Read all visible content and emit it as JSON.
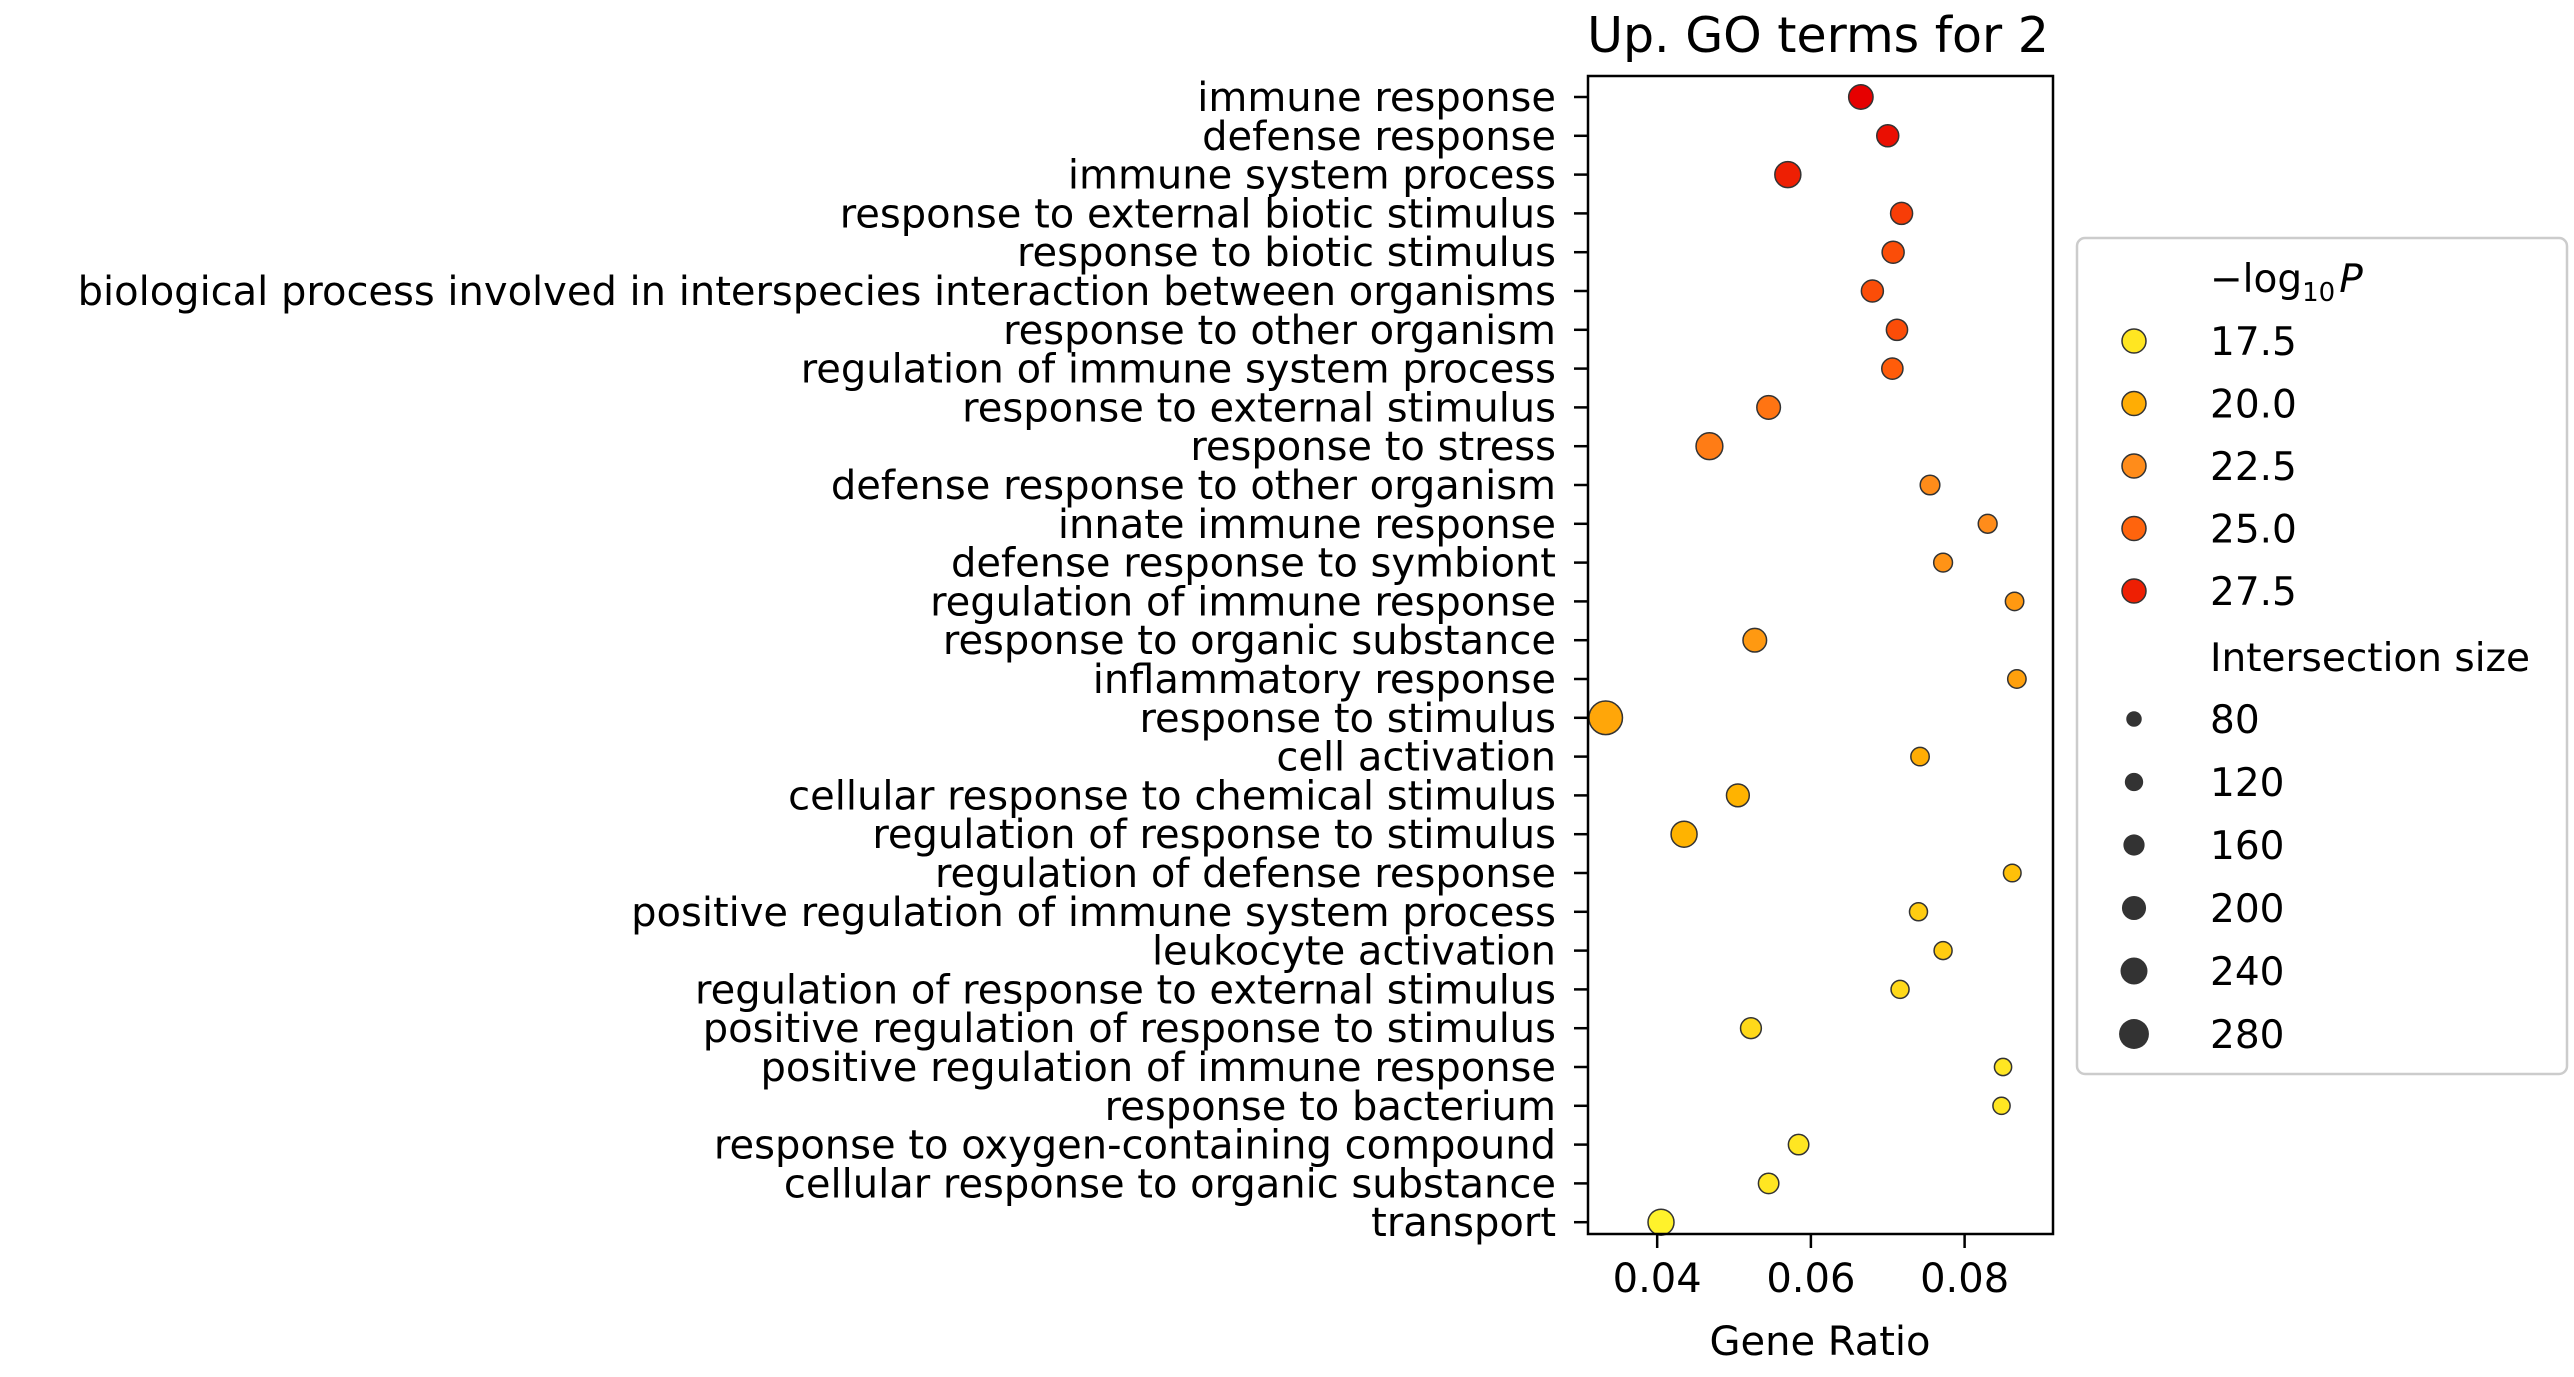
{
  "chart_data": {
    "type": "scatter",
    "title": "Up. GO terms for 2",
    "xlabel": "Gene Ratio",
    "ylabel": "",
    "xlim": [
      0.031,
      0.0915
    ],
    "xticks": [
      0.04,
      0.06,
      0.08
    ],
    "xtick_labels": [
      "0.04",
      "0.06",
      "0.08"
    ],
    "grid": false,
    "legend_position": "right, outside plot",
    "color_scale": {
      "min": 16.5,
      "max": 28.5,
      "colors": [
        "#ffff33",
        "#ffb300",
        "#ff8c1a",
        "#ff5c0a",
        "#e60000"
      ]
    },
    "size_scale": {
      "min": 40,
      "max": 290
    },
    "points": [
      {
        "term": "immune response",
        "gene_ratio": 0.0665,
        "neg_log10_p": 28.5,
        "intersection_size": 170
      },
      {
        "term": "defense response",
        "gene_ratio": 0.07,
        "neg_log10_p": 28.0,
        "intersection_size": 140
      },
      {
        "term": "immune system process",
        "gene_ratio": 0.057,
        "neg_log10_p": 27.5,
        "intersection_size": 190
      },
      {
        "term": "response to external biotic stimulus",
        "gene_ratio": 0.0718,
        "neg_log10_p": 26.5,
        "intersection_size": 140
      },
      {
        "term": "response to biotic stimulus",
        "gene_ratio": 0.0707,
        "neg_log10_p": 26.0,
        "intersection_size": 140
      },
      {
        "term": "biological process involved in interspecies interaction between organisms",
        "gene_ratio": 0.068,
        "neg_log10_p": 26.0,
        "intersection_size": 140
      },
      {
        "term": "response to other organism",
        "gene_ratio": 0.0712,
        "neg_log10_p": 26.0,
        "intersection_size": 130
      },
      {
        "term": "regulation of immune system process",
        "gene_ratio": 0.0706,
        "neg_log10_p": 25.5,
        "intersection_size": 130
      },
      {
        "term": "response to external stimulus",
        "gene_ratio": 0.0545,
        "neg_log10_p": 24.0,
        "intersection_size": 160
      },
      {
        "term": "response to stress",
        "gene_ratio": 0.0468,
        "neg_log10_p": 23.5,
        "intersection_size": 200
      },
      {
        "term": "defense response to other organism",
        "gene_ratio": 0.0755,
        "neg_log10_p": 22.5,
        "intersection_size": 110
      },
      {
        "term": "innate immune response",
        "gene_ratio": 0.083,
        "neg_log10_p": 22.5,
        "intersection_size": 100
      },
      {
        "term": "defense response to symbiont",
        "gene_ratio": 0.0772,
        "neg_log10_p": 22.0,
        "intersection_size": 100
      },
      {
        "term": "regulation of immune response",
        "gene_ratio": 0.0865,
        "neg_log10_p": 21.5,
        "intersection_size": 95
      },
      {
        "term": "response to organic substance",
        "gene_ratio": 0.0527,
        "neg_log10_p": 21.5,
        "intersection_size": 160
      },
      {
        "term": "inflammatory response",
        "gene_ratio": 0.0868,
        "neg_log10_p": 21.0,
        "intersection_size": 95
      },
      {
        "term": "response to stimulus",
        "gene_ratio": 0.0333,
        "neg_log10_p": 20.5,
        "intersection_size": 285
      },
      {
        "term": "cell activation",
        "gene_ratio": 0.0742,
        "neg_log10_p": 20.0,
        "intersection_size": 95
      },
      {
        "term": "cellular response to chemical stimulus",
        "gene_ratio": 0.0505,
        "neg_log10_p": 19.5,
        "intersection_size": 150
      },
      {
        "term": "regulation of response to stimulus",
        "gene_ratio": 0.0435,
        "neg_log10_p": 19.5,
        "intersection_size": 190
      },
      {
        "term": "regulation of defense response",
        "gene_ratio": 0.0862,
        "neg_log10_p": 19.0,
        "intersection_size": 85
      },
      {
        "term": "positive regulation of immune system process",
        "gene_ratio": 0.074,
        "neg_log10_p": 18.5,
        "intersection_size": 90
      },
      {
        "term": "leukocyte activation",
        "gene_ratio": 0.0772,
        "neg_log10_p": 18.5,
        "intersection_size": 90
      },
      {
        "term": "regulation of response to external stimulus",
        "gene_ratio": 0.0716,
        "neg_log10_p": 18.0,
        "intersection_size": 90
      },
      {
        "term": "positive regulation of response to stimulus",
        "gene_ratio": 0.0522,
        "neg_log10_p": 18.0,
        "intersection_size": 125
      },
      {
        "term": "positive regulation of immune response",
        "gene_ratio": 0.085,
        "neg_log10_p": 17.5,
        "intersection_size": 80
      },
      {
        "term": "response to bacterium",
        "gene_ratio": 0.0848,
        "neg_log10_p": 17.5,
        "intersection_size": 80
      },
      {
        "term": "response to oxygen-containing compound",
        "gene_ratio": 0.0584,
        "neg_log10_p": 17.5,
        "intersection_size": 120
      },
      {
        "term": "cellular response to organic substance",
        "gene_ratio": 0.0545,
        "neg_log10_p": 17.5,
        "intersection_size": 120
      },
      {
        "term": "transport",
        "gene_ratio": 0.0405,
        "neg_log10_p": 17.0,
        "intersection_size": 190
      }
    ]
  },
  "legend": {
    "color_title": "−log",
    "color_title_sub": "10",
    "color_title_var": "P",
    "color_items": [
      {
        "label": "17.5",
        "value": 17.5
      },
      {
        "label": "20.0",
        "value": 20.0
      },
      {
        "label": "22.5",
        "value": 22.5
      },
      {
        "label": "25.0",
        "value": 25.0
      },
      {
        "label": "27.5",
        "value": 27.5
      }
    ],
    "size_title": "Intersection size",
    "size_color": "#333333",
    "size_items": [
      {
        "label": "80",
        "value": 80
      },
      {
        "label": "120",
        "value": 120
      },
      {
        "label": "160",
        "value": 160
      },
      {
        "label": "200",
        "value": 200
      },
      {
        "label": "240",
        "value": 240
      },
      {
        "label": "280",
        "value": 280
      }
    ]
  }
}
